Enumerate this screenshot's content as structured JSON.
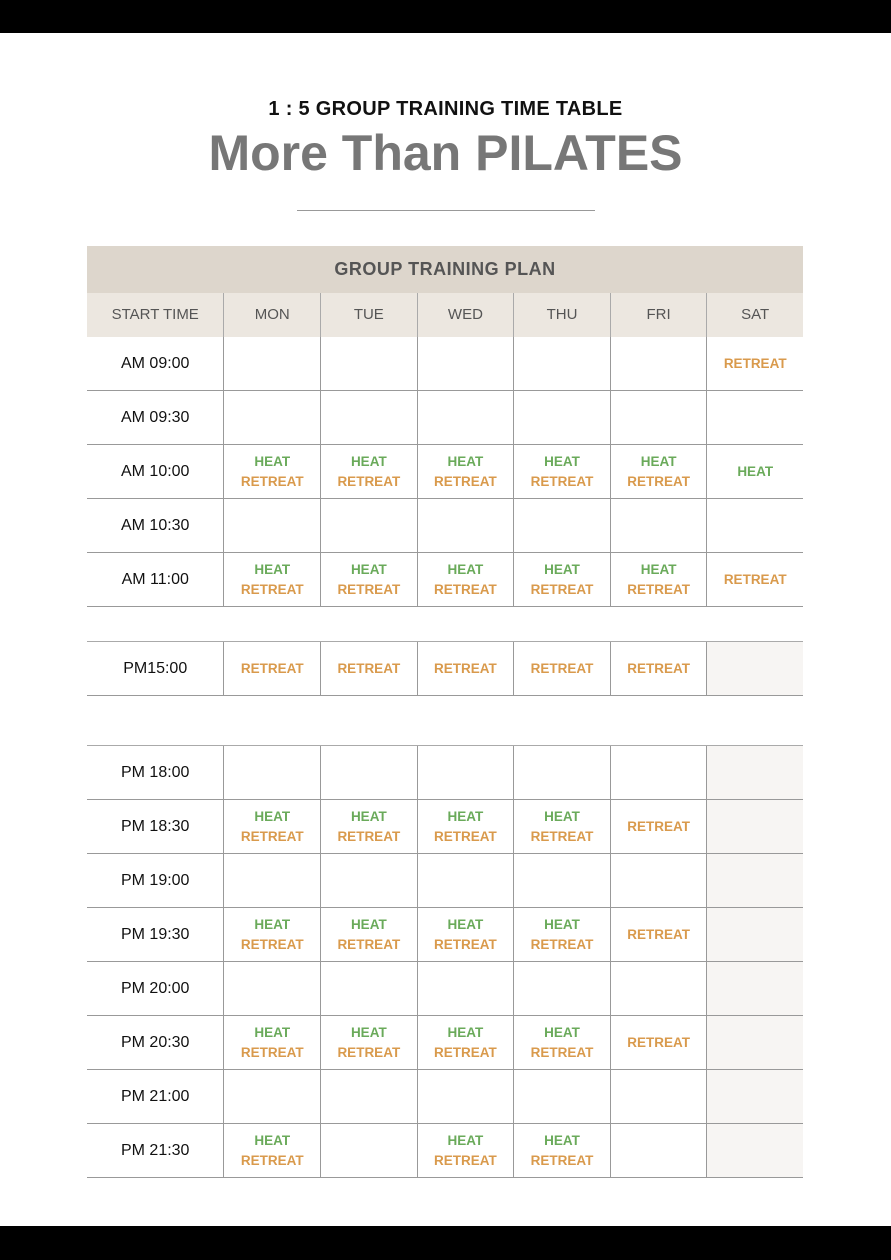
{
  "subtitle": "1 : 5 GROUP TRAINING TIME TABLE",
  "title": "More Than PILATES",
  "plan_header": "GROUP TRAINING PLAN",
  "columns": [
    "START TIME",
    "MON",
    "TUE",
    "WED",
    "THU",
    "FRI",
    "SAT"
  ],
  "colors": {
    "heat": "#6aaa5a",
    "retreat": "#d99a4c",
    "header_band": "#ddd6cc",
    "header_row": "#ece7e0"
  },
  "morning": [
    {
      "time": "AM 09:00",
      "cells": [
        [],
        [],
        [],
        [],
        [],
        [
          "RETREAT"
        ]
      ]
    },
    {
      "time": "AM 09:30",
      "cells": [
        [],
        [],
        [],
        [],
        [],
        []
      ]
    },
    {
      "time": "AM 10:00",
      "cells": [
        [
          "HEAT",
          "RETREAT"
        ],
        [
          "HEAT",
          "RETREAT"
        ],
        [
          "HEAT",
          "RETREAT"
        ],
        [
          "HEAT",
          "RETREAT"
        ],
        [
          "HEAT",
          "RETREAT"
        ],
        [
          "HEAT"
        ]
      ]
    },
    {
      "time": "AM 10:30",
      "cells": [
        [],
        [],
        [],
        [],
        [],
        []
      ]
    },
    {
      "time": "AM 11:00",
      "cells": [
        [
          "HEAT",
          "RETREAT"
        ],
        [
          "HEAT",
          "RETREAT"
        ],
        [
          "HEAT",
          "RETREAT"
        ],
        [
          "HEAT",
          "RETREAT"
        ],
        [
          "HEAT",
          "RETREAT"
        ],
        [
          "RETREAT"
        ]
      ]
    }
  ],
  "afternoon": [
    {
      "time": "PM15:00",
      "cells": [
        [
          "RETREAT"
        ],
        [
          "RETREAT"
        ],
        [
          "RETREAT"
        ],
        [
          "RETREAT"
        ],
        [
          "RETREAT"
        ],
        []
      ]
    }
  ],
  "evening": [
    {
      "time": "PM 18:00",
      "cells": [
        [],
        [],
        [],
        [],
        [],
        []
      ]
    },
    {
      "time": "PM 18:30",
      "cells": [
        [
          "HEAT",
          "RETREAT"
        ],
        [
          "HEAT",
          "RETREAT"
        ],
        [
          "HEAT",
          "RETREAT"
        ],
        [
          "HEAT",
          "RETREAT"
        ],
        [
          "RETREAT"
        ],
        []
      ]
    },
    {
      "time": "PM 19:00",
      "cells": [
        [],
        [],
        [],
        [],
        [],
        []
      ]
    },
    {
      "time": "PM 19:30",
      "cells": [
        [
          "HEAT",
          "RETREAT"
        ],
        [
          "HEAT",
          "RETREAT"
        ],
        [
          "HEAT",
          "RETREAT"
        ],
        [
          "HEAT",
          "RETREAT"
        ],
        [
          "RETREAT"
        ],
        []
      ]
    },
    {
      "time": "PM 20:00",
      "cells": [
        [],
        [],
        [],
        [],
        [],
        []
      ]
    },
    {
      "time": "PM 20:30",
      "cells": [
        [
          "HEAT",
          "RETREAT"
        ],
        [
          "HEAT",
          "RETREAT"
        ],
        [
          "HEAT",
          "RETREAT"
        ],
        [
          "HEAT",
          "RETREAT"
        ],
        [
          "RETREAT"
        ],
        []
      ]
    },
    {
      "time": "PM 21:00",
      "cells": [
        [],
        [],
        [],
        [],
        [],
        []
      ]
    },
    {
      "time": "PM 21:30",
      "cells": [
        [
          "HEAT",
          "RETREAT"
        ],
        [],
        [
          "HEAT",
          "RETREAT"
        ],
        [
          "HEAT",
          "RETREAT"
        ],
        [],
        []
      ]
    }
  ]
}
